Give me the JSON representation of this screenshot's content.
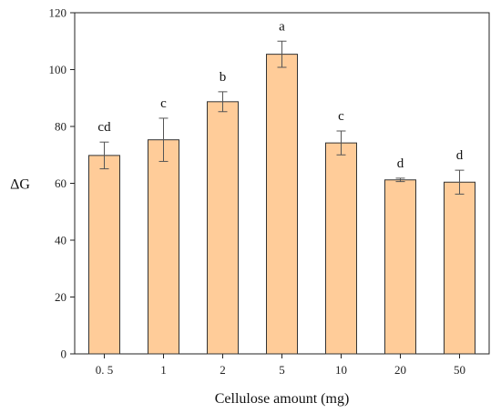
{
  "chart_data": {
    "type": "bar",
    "title": "",
    "xlabel": "Cellulose amount (mg)",
    "ylabel": "ΔG",
    "ylim": [
      0,
      120
    ],
    "yticks": [
      "0",
      "20",
      "40",
      "60",
      "80",
      "100",
      "120"
    ],
    "categories": [
      "0. 5",
      "1",
      "2",
      "5",
      "10",
      "20",
      "50"
    ],
    "values": [
      69.8,
      75.3,
      88.7,
      105.4,
      74.2,
      61.2,
      60.4
    ],
    "errors": [
      4.7,
      7.6,
      3.5,
      4.6,
      4.2,
      0.6,
      4.2
    ],
    "group_letters": [
      "cd",
      "c",
      "b",
      "a",
      "c",
      "d",
      "d"
    ],
    "bar_color": "#FFCC99",
    "bar_edge_color": "#333333",
    "grid": false,
    "legend": "none"
  }
}
